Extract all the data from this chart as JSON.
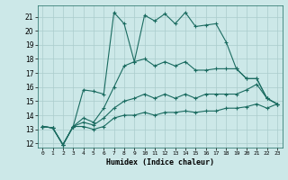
{
  "title": "",
  "xlabel": "Humidex (Indice chaleur)",
  "background_color": "#cce8e8",
  "grid_color": "#aacccc",
  "line_color": "#1a6b60",
  "xlim": [
    -0.5,
    23.5
  ],
  "ylim": [
    11.7,
    21.8
  ],
  "yticks": [
    12,
    13,
    14,
    15,
    16,
    17,
    18,
    19,
    20,
    21
  ],
  "xticks": [
    0,
    1,
    2,
    3,
    4,
    5,
    6,
    7,
    8,
    9,
    10,
    11,
    12,
    13,
    14,
    15,
    16,
    17,
    18,
    19,
    20,
    21,
    22,
    23
  ],
  "series": [
    [
      13.2,
      13.1,
      11.9,
      13.2,
      15.8,
      15.7,
      15.5,
      21.3,
      20.5,
      17.8,
      21.1,
      20.7,
      21.2,
      20.5,
      21.3,
      20.3,
      20.4,
      20.5,
      19.2,
      17.3,
      16.6,
      16.6,
      15.2,
      14.8
    ],
    [
      13.2,
      13.1,
      11.9,
      13.2,
      13.8,
      13.5,
      14.5,
      16.0,
      17.5,
      17.8,
      18.0,
      17.5,
      17.8,
      17.5,
      17.8,
      17.2,
      17.2,
      17.3,
      17.3,
      17.3,
      16.6,
      16.6,
      15.2,
      14.8
    ],
    [
      13.2,
      13.1,
      11.9,
      13.2,
      13.5,
      13.3,
      13.8,
      14.5,
      15.0,
      15.2,
      15.5,
      15.2,
      15.5,
      15.2,
      15.5,
      15.2,
      15.5,
      15.5,
      15.5,
      15.5,
      15.8,
      16.2,
      15.2,
      14.8
    ],
    [
      13.2,
      13.1,
      11.9,
      13.2,
      13.2,
      13.0,
      13.2,
      13.8,
      14.0,
      14.0,
      14.2,
      14.0,
      14.2,
      14.2,
      14.3,
      14.2,
      14.3,
      14.3,
      14.5,
      14.5,
      14.6,
      14.8,
      14.5,
      14.8
    ]
  ]
}
